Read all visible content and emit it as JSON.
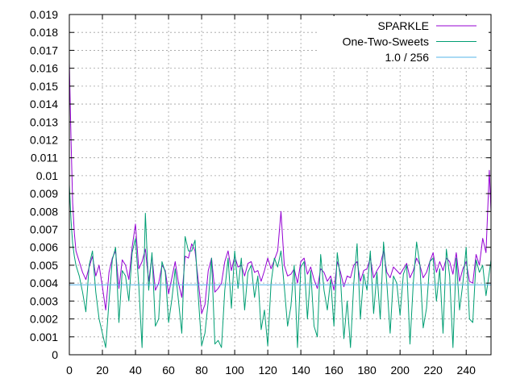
{
  "chart_data": {
    "type": "line",
    "title": "",
    "xlabel": "",
    "ylabel": "",
    "xlim": [
      0,
      255
    ],
    "ylim": [
      0,
      0.019
    ],
    "grid": true,
    "legend_position": "top-right",
    "x_ticks": [
      "0",
      "20",
      "40",
      "60",
      "80",
      "100",
      "120",
      "140",
      "160",
      "180",
      "200",
      "220",
      "240"
    ],
    "y_ticks": [
      "0",
      "0.001",
      "0.002",
      "0.003",
      "0.004",
      "0.005",
      "0.006",
      "0.007",
      "0.008",
      "0.009",
      "0.01",
      "0.011",
      "0.012",
      "0.013",
      "0.014",
      "0.015",
      "0.016",
      "0.017",
      "0.018",
      "0.019"
    ],
    "series": [
      {
        "name": "SPARKLE",
        "color": "#9400d3",
        "x": [
          0,
          1,
          2,
          3,
          4,
          6,
          8,
          10,
          12,
          14,
          16,
          18,
          20,
          22,
          24,
          26,
          28,
          30,
          32,
          34,
          36,
          38,
          40,
          42,
          44,
          46,
          48,
          50,
          52,
          54,
          56,
          58,
          60,
          62,
          64,
          66,
          68,
          70,
          72,
          74,
          76,
          78,
          80,
          82,
          84,
          86,
          88,
          90,
          92,
          94,
          96,
          98,
          100,
          102,
          104,
          106,
          108,
          110,
          112,
          114,
          116,
          118,
          120,
          122,
          124,
          126,
          128,
          130,
          132,
          134,
          136,
          138,
          140,
          142,
          144,
          146,
          148,
          150,
          152,
          154,
          156,
          158,
          160,
          162,
          164,
          166,
          168,
          170,
          172,
          174,
          176,
          178,
          180,
          182,
          184,
          186,
          188,
          190,
          192,
          194,
          196,
          198,
          200,
          202,
          204,
          206,
          208,
          210,
          212,
          214,
          216,
          218,
          220,
          222,
          224,
          226,
          228,
          230,
          232,
          234,
          236,
          238,
          240,
          242,
          244,
          246,
          248,
          250,
          252,
          254,
          255
        ],
        "y": [
          0.0163,
          0.012,
          0.0085,
          0.0068,
          0.0058,
          0.0052,
          0.0046,
          0.0042,
          0.0049,
          0.0055,
          0.0044,
          0.005,
          0.0038,
          0.0025,
          0.0046,
          0.0054,
          0.0058,
          0.0037,
          0.0053,
          0.005,
          0.0042,
          0.006,
          0.0073,
          0.0048,
          0.0052,
          0.0059,
          0.0041,
          0.0055,
          0.0036,
          0.004,
          0.005,
          0.0047,
          0.0034,
          0.0043,
          0.0052,
          0.004,
          0.0032,
          0.0055,
          0.0054,
          0.0062,
          0.0058,
          0.0041,
          0.0023,
          0.0028,
          0.0047,
          0.0054,
          0.0035,
          0.0037,
          0.004,
          0.0052,
          0.0058,
          0.0047,
          0.0055,
          0.0049,
          0.005,
          0.0044,
          0.0051,
          0.0052,
          0.0046,
          0.0047,
          0.0041,
          0.0047,
          0.0054,
          0.0048,
          0.0053,
          0.0058,
          0.008,
          0.005,
          0.0044,
          0.0045,
          0.0048,
          0.004,
          0.0052,
          0.0054,
          0.0045,
          0.0049,
          0.0042,
          0.0037,
          0.0048,
          0.0046,
          0.0041,
          0.0044,
          0.0036,
          0.0052,
          0.0046,
          0.0038,
          0.0044,
          0.0043,
          0.005,
          0.0052,
          0.0041,
          0.0047,
          0.0048,
          0.0054,
          0.0043,
          0.0047,
          0.005,
          0.0058,
          0.0046,
          0.0043,
          0.0049,
          0.0047,
          0.0045,
          0.0048,
          0.0051,
          0.0043,
          0.0047,
          0.0054,
          0.005,
          0.0043,
          0.0046,
          0.0052,
          0.0057,
          0.0046,
          0.0052,
          0.0047,
          0.0054,
          0.0052,
          0.0045,
          0.0057,
          0.0041,
          0.0048,
          0.0052,
          0.0041,
          0.004,
          0.0056,
          0.005,
          0.0065,
          0.0057,
          0.0103,
          0.008
        ]
      },
      {
        "name": "One-Two-Sweets",
        "color": "#009e73",
        "x": [
          0,
          1,
          2,
          3,
          4,
          6,
          8,
          10,
          12,
          14,
          16,
          18,
          20,
          22,
          24,
          26,
          28,
          30,
          32,
          34,
          36,
          38,
          40,
          42,
          44,
          46,
          48,
          50,
          52,
          54,
          56,
          58,
          60,
          62,
          64,
          66,
          68,
          70,
          72,
          74,
          76,
          78,
          80,
          82,
          84,
          86,
          88,
          90,
          92,
          94,
          96,
          98,
          100,
          102,
          104,
          106,
          108,
          110,
          112,
          114,
          116,
          118,
          120,
          122,
          124,
          126,
          128,
          130,
          132,
          134,
          136,
          138,
          140,
          142,
          144,
          146,
          148,
          150,
          152,
          154,
          156,
          158,
          160,
          162,
          164,
          166,
          168,
          170,
          172,
          174,
          176,
          178,
          180,
          182,
          184,
          186,
          188,
          190,
          192,
          194,
          196,
          198,
          200,
          202,
          204,
          206,
          208,
          210,
          212,
          214,
          216,
          218,
          220,
          222,
          224,
          226,
          228,
          230,
          232,
          234,
          236,
          238,
          240,
          242,
          244,
          246,
          248,
          250,
          252,
          254,
          255
        ],
        "y": [
          0.0095,
          0.0075,
          0.0062,
          0.0055,
          0.005,
          0.0044,
          0.0035,
          0.0024,
          0.005,
          0.0058,
          0.0035,
          0.002,
          0.0012,
          0.0004,
          0.003,
          0.0053,
          0.006,
          0.0018,
          0.0047,
          0.0044,
          0.003,
          0.0057,
          0.0065,
          0.0039,
          0.0004,
          0.0079,
          0.0036,
          0.0057,
          0.0016,
          0.002,
          0.0052,
          0.0046,
          0.0018,
          0.0031,
          0.0048,
          0.003,
          0.0012,
          0.0066,
          0.0058,
          0.0058,
          0.0064,
          0.0032,
          0.0005,
          0.0012,
          0.003,
          0.0054,
          0.0006,
          0.0008,
          0.0004,
          0.0036,
          0.0054,
          0.0026,
          0.0058,
          0.0037,
          0.0054,
          0.0025,
          0.0046,
          0.005,
          0.0032,
          0.0044,
          0.0014,
          0.0025,
          0.0005,
          0.004,
          0.0054,
          0.0049,
          0.0058,
          0.0038,
          0.0016,
          0.0027,
          0.005,
          0.0004,
          0.0049,
          0.0052,
          0.002,
          0.0047,
          0.0016,
          0.001,
          0.0056,
          0.0036,
          0.0025,
          0.0042,
          0.0016,
          0.0057,
          0.0042,
          0.0009,
          0.003,
          0.0004,
          0.004,
          0.0062,
          0.002,
          0.0045,
          0.0036,
          0.0058,
          0.0023,
          0.0046,
          0.002,
          0.0063,
          0.004,
          0.0012,
          0.0044,
          0.004,
          0.0022,
          0.0045,
          0.005,
          0.0006,
          0.004,
          0.0063,
          0.005,
          0.0015,
          0.0026,
          0.0052,
          0.0054,
          0.003,
          0.0048,
          0.0012,
          0.0059,
          0.0044,
          0.0004,
          0.0054,
          0.0025,
          0.004,
          0.006,
          0.002,
          0.0018,
          0.0053,
          0.0046,
          0.005,
          0.0033,
          0.0046,
          0.0053
        ]
      },
      {
        "name": "1.0 / 256",
        "color": "#56b4e9",
        "x": [
          0,
          255
        ],
        "y": [
          0.00390625,
          0.00390625
        ]
      }
    ]
  }
}
